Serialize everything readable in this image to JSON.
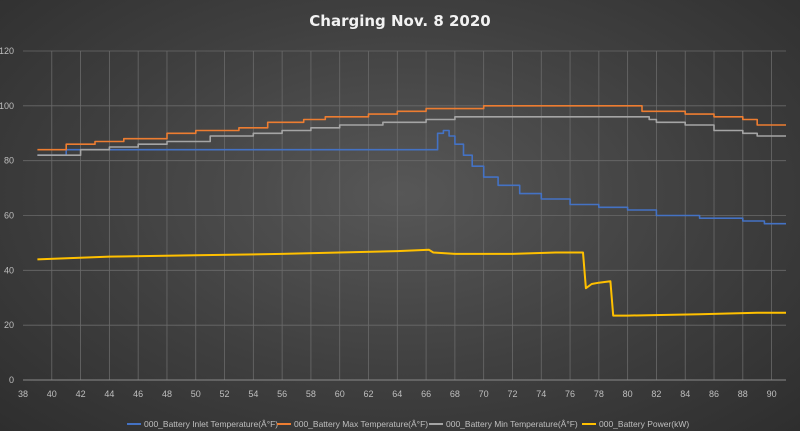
{
  "chart_data": {
    "type": "line",
    "title": "Charging Nov. 8 2020",
    "xlabel": "",
    "ylabel": "",
    "xlim": [
      38,
      91
    ],
    "ylim": [
      0,
      120
    ],
    "x_ticks": [
      38,
      40,
      42,
      44,
      46,
      48,
      50,
      52,
      54,
      56,
      58,
      60,
      62,
      64,
      66,
      68,
      70,
      72,
      74,
      76,
      78,
      80,
      82,
      84,
      86,
      88,
      90
    ],
    "y_ticks": [
      0,
      20,
      40,
      60,
      80,
      100,
      120
    ],
    "grid": true,
    "legend_position": "bottom",
    "series": [
      {
        "name": "000_Battery Inlet Temperature(Â°F)",
        "color": "#4472c4",
        "step": true,
        "points": [
          [
            39,
            82
          ],
          [
            41,
            84
          ],
          [
            45,
            84
          ],
          [
            66.3,
            84
          ],
          [
            66.8,
            90
          ],
          [
            67.2,
            91
          ],
          [
            67.6,
            89
          ],
          [
            68,
            86
          ],
          [
            68.6,
            82
          ],
          [
            69.2,
            78
          ],
          [
            70,
            74
          ],
          [
            71,
            71
          ],
          [
            72.5,
            68
          ],
          [
            74,
            66
          ],
          [
            76,
            64
          ],
          [
            78,
            63
          ],
          [
            80,
            62
          ],
          [
            82,
            60
          ],
          [
            85,
            59
          ],
          [
            88,
            58
          ],
          [
            89.5,
            57
          ],
          [
            91,
            57
          ]
        ]
      },
      {
        "name": "000_Battery Max Temperature(Â°F)",
        "color": "#ed7d31",
        "step": true,
        "points": [
          [
            39,
            84
          ],
          [
            41,
            86
          ],
          [
            43,
            87
          ],
          [
            45,
            88
          ],
          [
            48,
            90
          ],
          [
            50,
            91
          ],
          [
            53,
            92
          ],
          [
            55,
            94
          ],
          [
            57.5,
            95
          ],
          [
            59,
            96
          ],
          [
            62,
            97
          ],
          [
            64,
            98
          ],
          [
            66,
            99
          ],
          [
            70,
            100
          ],
          [
            81,
            98
          ],
          [
            84,
            97
          ],
          [
            86,
            96
          ],
          [
            88,
            95
          ],
          [
            89,
            93
          ],
          [
            91,
            93
          ]
        ]
      },
      {
        "name": "000_Battery Min Temperature(Â°F)",
        "color": "#a5a5a5",
        "step": true,
        "points": [
          [
            39,
            82
          ],
          [
            42,
            84
          ],
          [
            44,
            85
          ],
          [
            46,
            86
          ],
          [
            48,
            87
          ],
          [
            51,
            89
          ],
          [
            54,
            90
          ],
          [
            56,
            91
          ],
          [
            58,
            92
          ],
          [
            60,
            93
          ],
          [
            63,
            94
          ],
          [
            66,
            95
          ],
          [
            68,
            96
          ],
          [
            81.5,
            95
          ],
          [
            82,
            94
          ],
          [
            84,
            93
          ],
          [
            86,
            91
          ],
          [
            88,
            90
          ],
          [
            89,
            89
          ],
          [
            91,
            89
          ]
        ]
      },
      {
        "name": "000_Battery Power(kW)",
        "color": "#ffc000",
        "step": false,
        "points": [
          [
            39,
            44
          ],
          [
            44,
            45
          ],
          [
            50,
            45.5
          ],
          [
            56,
            46
          ],
          [
            60,
            46.5
          ],
          [
            64,
            47
          ],
          [
            66.2,
            47.5
          ],
          [
            66.5,
            46.5
          ],
          [
            68,
            46
          ],
          [
            72,
            46
          ],
          [
            75,
            46.5
          ],
          [
            76.9,
            46.5
          ],
          [
            77.1,
            33.5
          ],
          [
            77.5,
            35
          ],
          [
            78,
            35.5
          ],
          [
            78.8,
            36
          ],
          [
            79,
            23.5
          ],
          [
            80,
            23.5
          ],
          [
            85,
            24
          ],
          [
            89,
            24.5
          ],
          [
            91,
            24.5
          ]
        ]
      }
    ]
  }
}
